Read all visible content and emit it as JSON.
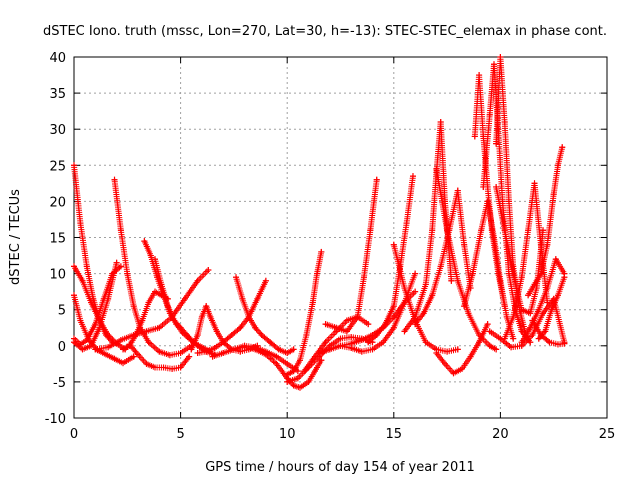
{
  "chart_data": {
    "type": "scatter",
    "title": "dSTEC Iono. truth (mssc, Lon=270, Lat=30, h=-13): STEC-STEC_elemax in phase cont.",
    "xlabel": "GPS time / hours of day 154 of year 2011",
    "ylabel": "dSTEC  / TECUs",
    "xlim": [
      0,
      25
    ],
    "ylim": [
      -10,
      40
    ],
    "x_ticks": [
      0,
      5,
      10,
      15,
      20,
      25
    ],
    "y_ticks": [
      -10,
      -5,
      0,
      5,
      10,
      15,
      20,
      25,
      30,
      35,
      40
    ],
    "grid": true,
    "marker": "+",
    "colors": {
      "series": "#ff0000",
      "grid": "#a0a0a0",
      "axis": "#000000"
    },
    "series": [
      {
        "x": [
          0.0,
          0.3,
          0.6,
          0.9,
          1.2,
          1.5,
          1.8
        ],
        "y": [
          25,
          17,
          11,
          6.5,
          3.5,
          1.5,
          0.5
        ]
      },
      {
        "x": [
          0.0,
          0.4,
          0.8,
          1.2,
          1.6,
          2.0,
          2.4
        ],
        "y": [
          11,
          9,
          6,
          3.5,
          1.5,
          0.3,
          -0.5
        ]
      },
      {
        "x": [
          0.0,
          0.3,
          0.7,
          1.1,
          1.5,
          1.9,
          2.3,
          2.8
        ],
        "y": [
          7,
          3.5,
          0.8,
          -0.6,
          -1.2,
          -1.8,
          -2.4,
          -1.5
        ]
      },
      {
        "x": [
          0.0,
          0.4,
          0.8,
          1.2,
          1.6,
          2.0
        ],
        "y": [
          0.5,
          -0.5,
          0.0,
          2.5,
          6.5,
          11.5
        ]
      },
      {
        "x": [
          0.0,
          0.3,
          0.6,
          1.0,
          1.4,
          1.8,
          2.2
        ],
        "y": [
          1,
          0.2,
          0.8,
          3,
          6.5,
          10,
          11
        ]
      },
      {
        "x": [
          1.9,
          2.2,
          2.5,
          2.8,
          3.1,
          3.5,
          4.0,
          4.5,
          5.0,
          5.5
        ],
        "y": [
          23,
          16,
          10,
          5.5,
          2.5,
          0.5,
          -0.8,
          -1.3,
          -1.0,
          0.0
        ]
      },
      {
        "x": [
          2.3,
          2.6,
          2.9,
          3.2,
          3.5,
          3.8,
          4.1,
          4.4
        ],
        "y": [
          -0.5,
          0.0,
          1.5,
          3.5,
          6.0,
          7.5,
          7.0,
          6.5
        ]
      },
      {
        "x": [
          1.0,
          1.6,
          2.2,
          2.8,
          3.4,
          4.0,
          4.6,
          5.2,
          5.8,
          6.3
        ],
        "y": [
          -0.5,
          -0.2,
          0.8,
          1.5,
          2.0,
          2.5,
          4.0,
          6.5,
          9.0,
          10.5
        ]
      },
      {
        "x": [
          2.6,
          3.0,
          3.4,
          3.8,
          4.2,
          4.6,
          5.0,
          5.4
        ],
        "y": [
          0.2,
          -1.2,
          -2.5,
          -3.0,
          -3.0,
          -3.2,
          -3.0,
          -1.5
        ]
      },
      {
        "x": [
          3.3,
          3.6,
          3.9,
          4.2,
          4.5,
          4.8,
          5.1,
          5.4,
          5.8,
          6.2,
          6.6
        ],
        "y": [
          14.5,
          12.5,
          9.5,
          7.0,
          4.5,
          3.0,
          1.8,
          1.0,
          0.0,
          -0.8,
          -1.2
        ]
      },
      {
        "x": [
          3.8,
          4.1,
          4.4,
          4.7,
          5.0,
          5.3,
          5.6,
          6.0,
          6.4
        ],
        "y": [
          12,
          8.5,
          5.5,
          3.5,
          2.5,
          1.5,
          0.5,
          -0.2,
          -0.8
        ]
      },
      {
        "x": [
          5.5,
          5.8,
          6.0,
          6.2,
          6.4,
          6.7,
          7.0,
          7.4,
          7.8,
          8.2,
          8.6
        ],
        "y": [
          -0.5,
          1.5,
          4.0,
          5.5,
          4.0,
          2.0,
          0.5,
          -0.5,
          -0.8,
          -0.5,
          0.0
        ]
      },
      {
        "x": [
          5.8,
          6.2,
          6.6,
          7.0,
          7.4,
          7.8,
          8.2,
          8.6,
          9.0
        ],
        "y": [
          -1.0,
          -0.8,
          -0.3,
          0.5,
          1.5,
          2.5,
          4.0,
          6.5,
          9.0
        ]
      },
      {
        "x": [
          7.6,
          7.9,
          8.2,
          8.5,
          8.8,
          9.2,
          9.6,
          10.0,
          10.3
        ],
        "y": [
          9.5,
          6.5,
          4.0,
          2.5,
          1.5,
          0.5,
          -0.5,
          -1.0,
          -0.5
        ]
      },
      {
        "x": [
          6.5,
          7.0,
          7.5,
          8.0,
          8.5,
          9.0,
          9.5,
          10.0,
          10.5
        ],
        "y": [
          -1.5,
          -1.0,
          -0.5,
          0.0,
          -0.2,
          -0.8,
          -1.5,
          -2.5,
          -3.5
        ]
      },
      {
        "x": [
          8.0,
          8.5,
          9.0,
          9.5,
          10.0,
          10.3,
          10.6,
          11.0,
          11.3,
          11.6
        ],
        "y": [
          -0.2,
          -0.5,
          -1.2,
          -2.5,
          -4.5,
          -5.5,
          -5.8,
          -5.0,
          -3.5,
          -2.0
        ]
      },
      {
        "x": [
          10.0,
          10.3,
          10.6,
          10.9,
          11.2,
          11.4,
          11.6
        ],
        "y": [
          -4.0,
          -3.5,
          -2.0,
          1.5,
          6.0,
          10.0,
          13.0
        ]
      },
      {
        "x": [
          10.0,
          10.5,
          11.0,
          11.5,
          12.0,
          12.5,
          13.0,
          13.5,
          14.0
        ],
        "y": [
          -5.0,
          -4.5,
          -3.0,
          -1.5,
          0.0,
          1.0,
          1.2,
          1.0,
          0.5
        ]
      },
      {
        "x": [
          10.8,
          11.3,
          11.8,
          12.3,
          12.8,
          13.3,
          13.8
        ],
        "y": [
          -3.5,
          -1.5,
          0.5,
          2.0,
          3.5,
          4.0,
          3.0
        ]
      },
      {
        "x": [
          11.8,
          12.3,
          12.8,
          13.3,
          13.6,
          13.9,
          14.2
        ],
        "y": [
          3.0,
          2.5,
          2.0,
          4.0,
          9.5,
          16.0,
          23.0
        ]
      },
      {
        "x": [
          11.5,
          12.0,
          12.5,
          13.0,
          13.5,
          14.0,
          14.5,
          15.0,
          15.5,
          16.0
        ],
        "y": [
          -1.0,
          -0.5,
          0.0,
          -0.3,
          -0.8,
          -0.5,
          0.5,
          2.5,
          6.0,
          10.0
        ]
      },
      {
        "x": [
          13.8,
          14.2,
          14.6,
          15.0,
          15.3,
          15.6,
          15.9
        ],
        "y": [
          0.5,
          1.5,
          3.0,
          5.5,
          11.0,
          17.0,
          23.5
        ]
      },
      {
        "x": [
          12.5,
          13.0,
          13.5,
          14.0,
          14.5,
          15.0,
          15.5,
          16.0
        ],
        "y": [
          0.0,
          0.3,
          0.8,
          1.5,
          2.5,
          4.0,
          6.0,
          7.5
        ]
      },
      {
        "x": [
          15.0,
          15.5,
          16.0,
          16.5,
          17.0,
          17.5,
          18.0
        ],
        "y": [
          14.0,
          8.0,
          3.5,
          0.5,
          -0.5,
          -0.8,
          -0.5
        ]
      },
      {
        "x": [
          15.5,
          16.0,
          16.5,
          16.8,
          17.0,
          17.2,
          17.4,
          17.7
        ],
        "y": [
          2.0,
          4.0,
          8.5,
          16.0,
          24.0,
          31.0,
          20.0,
          9.0
        ]
      },
      {
        "x": [
          16.0,
          16.4,
          16.8,
          17.2,
          17.6,
          18.0,
          18.3,
          18.6
        ],
        "y": [
          3.0,
          4.5,
          7.0,
          11.0,
          16.0,
          21.5,
          14.0,
          8.0
        ]
      },
      {
        "x": [
          17.0,
          17.4,
          17.8,
          18.2,
          18.6,
          19.0,
          19.4
        ],
        "y": [
          -1.0,
          -2.5,
          -3.8,
          -3.2,
          -1.5,
          0.5,
          3.0
        ]
      },
      {
        "x": [
          17.0,
          17.5,
          18.0,
          18.5,
          19.0,
          19.5,
          19.8
        ],
        "y": [
          24.5,
          16.0,
          9.0,
          4.5,
          1.5,
          0.0,
          -0.5
        ]
      },
      {
        "x": [
          18.8,
          19.0,
          19.2,
          19.4,
          19.6,
          19.9,
          20.2
        ],
        "y": [
          29.0,
          37.5,
          29.0,
          22.0,
          16.0,
          10.0,
          5.5
        ]
      },
      {
        "x": [
          19.2,
          19.5,
          19.7,
          19.9,
          20.1,
          20.4,
          20.7,
          21.0,
          21.4
        ],
        "y": [
          22.0,
          32.0,
          39.0,
          30.0,
          20.0,
          10.0,
          5.0,
          2.0,
          0.5
        ]
      },
      {
        "x": [
          19.8,
          20.0,
          20.2,
          20.4,
          20.6,
          20.9,
          21.2
        ],
        "y": [
          28.0,
          40.0,
          31.0,
          20.0,
          11.0,
          5.0,
          1.5
        ]
      },
      {
        "x": [
          18.3,
          18.7,
          19.1,
          19.4,
          19.7,
          20.0,
          20.3,
          20.6
        ],
        "y": [
          5.5,
          10.0,
          16.0,
          20.0,
          15.0,
          9.0,
          4.0,
          1.0
        ]
      },
      {
        "x": [
          19.8,
          20.2,
          20.6,
          21.0,
          21.4,
          21.7,
          22.0
        ],
        "y": [
          22.0,
          16.0,
          10.0,
          5.0,
          4.5,
          8.0,
          16.0
        ]
      },
      {
        "x": [
          20.2,
          20.6,
          21.0,
          21.3,
          21.6,
          21.9,
          22.2
        ],
        "y": [
          1.0,
          4.0,
          9.5,
          16.0,
          22.5,
          14.0,
          6.0
        ]
      },
      {
        "x": [
          21.3,
          21.6,
          21.9,
          22.2,
          22.5,
          22.7,
          22.9
        ],
        "y": [
          7.0,
          8.5,
          10.0,
          14.0,
          21.0,
          25.0,
          27.5
        ]
      },
      {
        "x": [
          21.0,
          21.4,
          21.8,
          22.2,
          22.6,
          23.0
        ],
        "y": [
          0.5,
          2.5,
          5.0,
          8.0,
          12.0,
          10.0
        ]
      },
      {
        "x": [
          21.8,
          22.1,
          22.4,
          22.7,
          23.0
        ],
        "y": [
          1.0,
          2.0,
          5.0,
          7.0,
          9.5
        ]
      },
      {
        "x": [
          19.5,
          20.0,
          20.5,
          21.0,
          21.5,
          22.0,
          22.5,
          23.0
        ],
        "y": [
          2.0,
          1.0,
          -0.2,
          0.0,
          1.5,
          4.5,
          6.5,
          0.5
        ]
      },
      {
        "x": [
          21.5,
          21.9,
          22.3,
          22.7,
          23.0
        ],
        "y": [
          3.5,
          1.5,
          0.5,
          0.2,
          0.3
        ]
      }
    ]
  }
}
